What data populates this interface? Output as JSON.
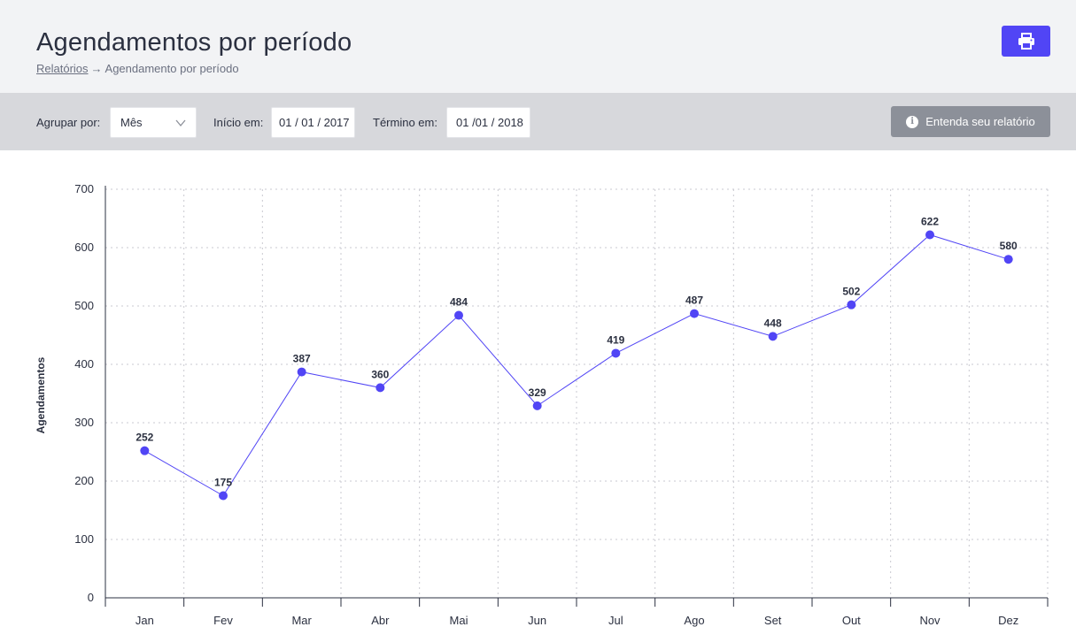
{
  "header": {
    "title": "Agendamentos por período",
    "breadcrumb": {
      "parent": "Relatórios",
      "separator": "→",
      "current": "Agendamento por período"
    },
    "print_icon": "printer-icon"
  },
  "filters": {
    "group_label": "Agrupar por:",
    "group_value": "Mês",
    "start_label": "Início em:",
    "start_value": "01 / 01 / 2017",
    "end_label": "Término em:",
    "end_value": "01 /01 / 2018",
    "help_label": "Entenda seu relatório",
    "help_icon": "info-icon"
  },
  "colors": {
    "accent": "#5145f5",
    "header_bg": "#f2f3f5",
    "filter_bg": "#d7d8dc",
    "help_button": "#8c9099"
  },
  "chart_data": {
    "type": "line",
    "categories": [
      "Jan",
      "Fev",
      "Mar",
      "Abr",
      "Mai",
      "Jun",
      "Jul",
      "Ago",
      "Set",
      "Out",
      "Nov",
      "Dez"
    ],
    "values": [
      252,
      175,
      387,
      360,
      484,
      329,
      419,
      487,
      448,
      502,
      622,
      580
    ],
    "ylabel": "Agendamentos",
    "ylim": [
      0,
      700
    ],
    "yticks": [
      0,
      100,
      200,
      300,
      400,
      500,
      600,
      700
    ],
    "grid": true,
    "data_labels": true
  }
}
